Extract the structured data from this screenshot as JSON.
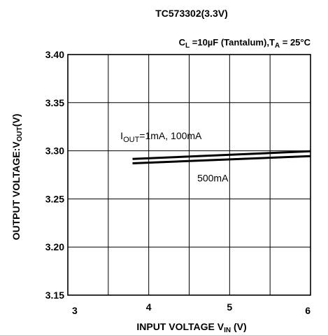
{
  "chart_data": {
    "type": "line",
    "title": "TC573302(3.3V)",
    "condition": {
      "cl_symbol": "C",
      "cl_sub": "L",
      "cl_value": " =10µF (Tantalum),",
      "ta_symbol": "T",
      "ta_sub": "A",
      "ta_value": " = 25°C"
    },
    "xlabel": {
      "main": "INPUT VOLTAGE V",
      "sub": "IN",
      "tail": " (V)"
    },
    "ylabel": {
      "main": "OUTPUT VOLTAGE:V",
      "sub": "OUT",
      "tail": "(V)"
    },
    "xlim": [
      3,
      6
    ],
    "ylim": [
      3.15,
      3.4
    ],
    "x_ticks": [
      3,
      4,
      5,
      6
    ],
    "x_tick_labels": [
      "3",
      "4",
      "5",
      "6"
    ],
    "y_ticks": [
      3.15,
      3.2,
      3.25,
      3.3,
      3.35,
      3.4
    ],
    "y_tick_labels": [
      "3.15",
      "3.20",
      "3.25",
      "3.30",
      "3.35",
      "3.40"
    ],
    "x_grid_divisions": 6,
    "grid": true,
    "series": [
      {
        "name": "1mA, 100mA",
        "x": [
          3.8,
          6.0
        ],
        "y": [
          3.2915,
          3.2995
        ]
      },
      {
        "name": "500mA",
        "x": [
          3.8,
          6.0
        ],
        "y": [
          3.287,
          3.2945
        ]
      }
    ],
    "annotations": [
      {
        "id": "iout",
        "pre": "I",
        "sub": "OUT",
        "post": "=1mA, 100mA",
        "x": 3.65,
        "y": 3.312
      },
      {
        "id": "i500",
        "pre": "500mA",
        "sub": "",
        "post": "",
        "x": 4.6,
        "y": 3.268
      }
    ],
    "colors": {
      "line": "#000000",
      "grid": "#000000",
      "background": "#ffffff"
    }
  }
}
